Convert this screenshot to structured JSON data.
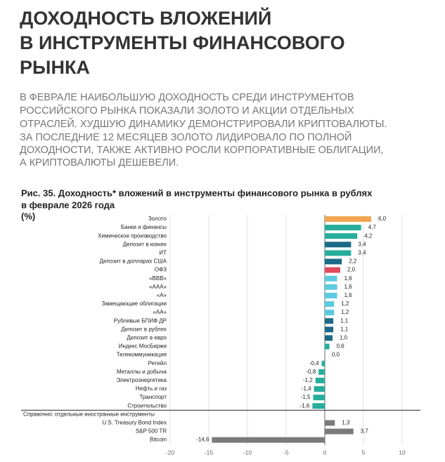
{
  "header": {
    "title": [
      "ДОХОДНОСТЬ ВЛОЖЕНИЙ",
      "В ИНСТРУМЕНТЫ ФИНАНСОВОГО",
      "РЫНКА"
    ],
    "lead": [
      "В ФЕВРАЛЕ НАИБОЛЬШУЮ ДОХОДНОСТЬ СРЕДИ ИНСТРУМЕНТОВ",
      "РОССИЙСКОГО РЫНКА ПОКАЗАЛИ ЗОЛОТО И АКЦИИ ОТДЕЛЬНЫХ",
      "ОТРАСЛЕЙ. ХУДШУЮ ДИНАМИКУ ДЕМОНСТРИРОВАЛИ КРИПТОВАЛЮТЫ.",
      "ЗА ПОСЛЕДНИЕ 12 МЕСЯЦЕВ ЗОЛОТО ЛИДИРОВАЛО ПО ПОЛНОЙ",
      "ДОХОДНОСТИ, ТАКЖЕ АКТИВНО РОСЛИ КОРПОРАТИВНЫЕ ОБЛИГАЦИИ,",
      "А КРИПТОВАЛЮТЫ ДЕШЕВЕЛИ."
    ]
  },
  "chart_data": {
    "type": "hbar",
    "title": [
      "Рис. 35. Доходность* вложений в инструменты финансового рынка в рублях",
      "в феврале 2026 года"
    ],
    "unit": "(%)",
    "categories": [
      "Золото",
      "Банки и финансы",
      "Химическое производство",
      "Депозит в юанях",
      "ИТ",
      "Депозит в долларах США",
      "ОФЗ",
      "«BBB»",
      "«AAA»",
      "«A»",
      "Замещающие облигации",
      "«AA»",
      "Рублевые БПИФ ДР",
      "Депозит в рублях",
      "Депозит в евро",
      "Индекс МосБиржи",
      "Телекоммуникация",
      "Ретейл",
      "Металлы и добыча",
      "Электроэнергетика",
      "Нефть и газ",
      "Транспорт",
      "Строительство",
      "Справочно: отдельные иностранные инструменты",
      "U.S. Treasury Bond Index",
      "S&P 500 TR",
      "Bitcoin"
    ],
    "values": [
      6.0,
      4.7,
      4.2,
      3.4,
      3.4,
      2.2,
      2.0,
      1.6,
      1.6,
      1.6,
      1.2,
      1.2,
      1.1,
      1.1,
      1.0,
      0.6,
      0.0,
      -0.4,
      -0.8,
      -1.2,
      -1.4,
      -1.5,
      -1.6,
      null,
      1.3,
      3.7,
      -14.6
    ],
    "value_labels": [
      "6,0",
      "4,7",
      "4,2",
      "3,4",
      "3,4",
      "2,2",
      "2,0",
      "1,6",
      "1,6",
      "1,6",
      "1,2",
      "1,2",
      "1,1",
      "1,1",
      "1,0",
      "0,6",
      "0,0",
      "-0,4",
      "-0,8",
      "-1,2",
      "-1,4",
      "-1,5",
      "-1,6",
      null,
      "1,3",
      "3,7",
      "-14,6"
    ],
    "colors": [
      "#f2a654",
      "#26ad9c",
      "#26ad9c",
      "#1c6a87",
      "#26ad9c",
      "#1c6a87",
      "#e2495a",
      "#5ccbe0",
      "#5ccbe0",
      "#5ccbe0",
      "#5ccbe0",
      "#5ccbe0",
      "#1c6a87",
      "#1c6a87",
      "#1c6a87",
      "#26ad9c",
      "#26ad9c",
      "#26ad9c",
      "#26ad9c",
      "#26ad9c",
      "#26ad9c",
      "#26ad9c",
      "#26ad9c",
      null,
      "#7a7a7a",
      "#7a7a7a",
      "#7a7a7a"
    ],
    "xlim": [
      -21,
      12
    ],
    "xticks": [
      -20,
      -15,
      -10,
      -5,
      0,
      5,
      10
    ],
    "grid": true
  }
}
